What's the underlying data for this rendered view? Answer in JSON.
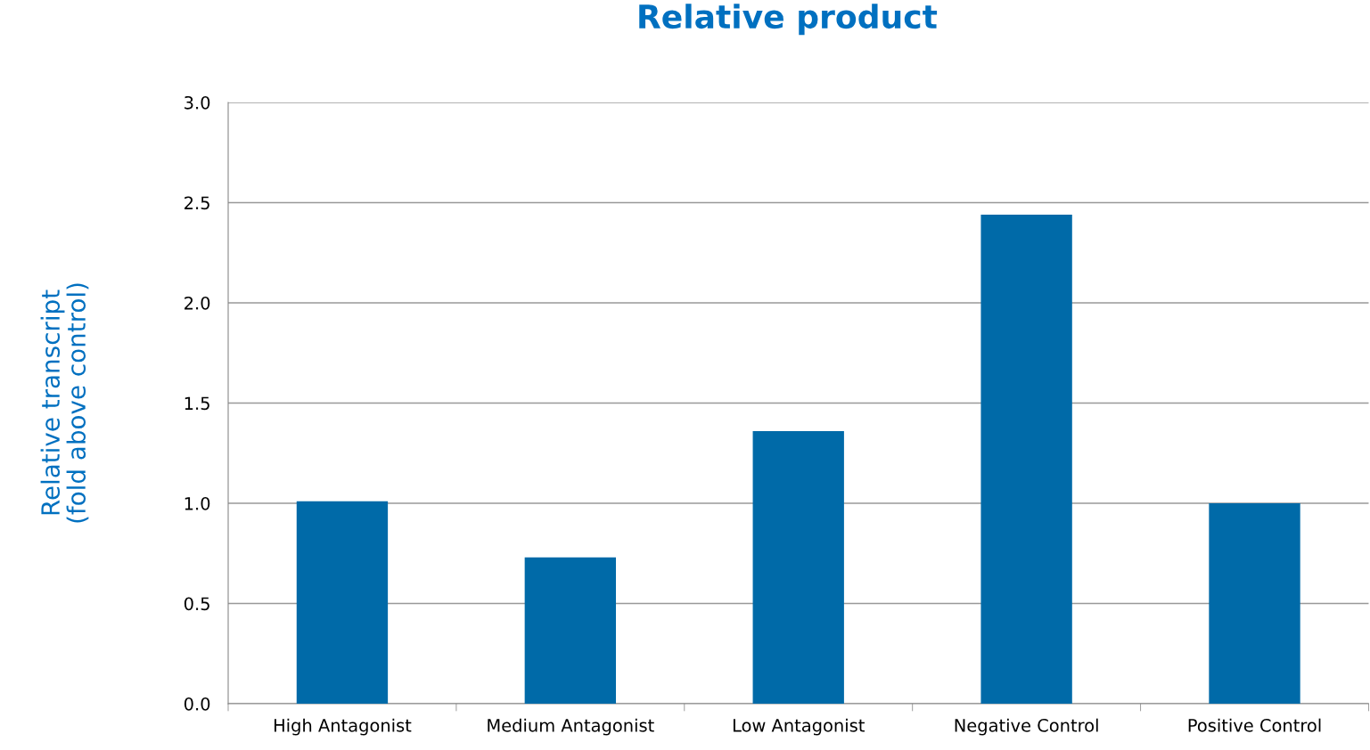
{
  "chart_data": {
    "type": "bar",
    "title": "Relative product",
    "ylabel": "Relative transcript\n(fold above control)",
    "categories": [
      "High Antagonist",
      "Medium Antagonist",
      "Low Antagonist",
      "Negative Control",
      "Positive Control"
    ],
    "values": [
      1.01,
      0.73,
      1.36,
      2.44,
      1.0
    ],
    "color": "#006aa8",
    "ylim": [
      0,
      3
    ],
    "yticks": [
      {
        "value": 0,
        "label": "0.0"
      },
      {
        "value": 0.5,
        "label": "0.5"
      },
      {
        "value": 1,
        "label": "1.0"
      },
      {
        "value": 1.5,
        "label": "1.5"
      },
      {
        "value": 2,
        "label": "2.0"
      },
      {
        "value": 2.5,
        "label": "2.5"
      },
      {
        "value": 3,
        "label": "3.0"
      }
    ],
    "grid": "y",
    "legend": false
  }
}
